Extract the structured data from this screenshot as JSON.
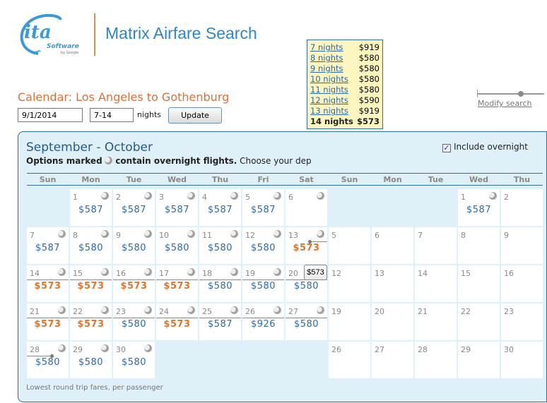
{
  "header": {
    "logo_text": "ita",
    "logo_sub": "Software",
    "logo_by": "by Google",
    "app_title": "Matrix Airfare Search"
  },
  "search": {
    "title": "Calendar: Los Angeles to Gothenburg",
    "date_value": "9/1/2014",
    "nights_value": "7-14",
    "nights_label": "nights",
    "update_label": "Update",
    "modify_label": "Modify search"
  },
  "calendar": {
    "months_title": "September - October",
    "legend_bold_1": "Options marked",
    "legend_bold_2": "contain overnight flights.",
    "legend_rest": "Choose your dep",
    "overnight_label": "Include overnight",
    "overnight_checked": true,
    "weekdays": [
      "Sun",
      "Mon",
      "Tue",
      "Wed",
      "Thu",
      "Fri",
      "Sat",
      "Sun",
      "Mon",
      "Tue",
      "Wed",
      "Thu"
    ],
    "september": [
      [
        null,
        {
          "day": "1",
          "price": "$587",
          "overnight": true
        },
        {
          "day": "2",
          "price": "$587",
          "overnight": true
        },
        {
          "day": "3",
          "price": "$587",
          "overnight": true
        },
        {
          "day": "4",
          "price": "$587",
          "overnight": true
        },
        {
          "day": "5",
          "price": "$587",
          "overnight": true
        },
        {
          "day": "6",
          "price": "",
          "overnight": true
        }
      ],
      [
        {
          "day": "7",
          "price": "$587",
          "overnight": true
        },
        {
          "day": "8",
          "price": "$580",
          "overnight": true
        },
        {
          "day": "9",
          "price": "$580",
          "overnight": true
        },
        {
          "day": "10",
          "price": "$580",
          "overnight": true
        },
        {
          "day": "11",
          "price": "$580",
          "overnight": true
        },
        {
          "day": "12",
          "price": "$580",
          "overnight": true
        },
        {
          "day": "13",
          "price": "$573",
          "best": true,
          "overnight": true,
          "range": "start"
        }
      ],
      [
        {
          "day": "14",
          "price": "$573",
          "best": true,
          "overnight": true,
          "range": "mid"
        },
        {
          "day": "15",
          "price": "$573",
          "best": true,
          "overnight": true,
          "range": "mid"
        },
        {
          "day": "16",
          "price": "$573",
          "best": true,
          "overnight": true,
          "range": "mid"
        },
        {
          "day": "17",
          "price": "$573",
          "best": true,
          "overnight": true,
          "range": "mid"
        },
        {
          "day": "18",
          "price": "$580",
          "overnight": true,
          "range": "mid"
        },
        {
          "day": "19",
          "price": "$580",
          "overnight": true,
          "range": "mid"
        },
        {
          "day": "20",
          "price": "$580",
          "overnight": true,
          "range": "mid"
        }
      ],
      [
        {
          "day": "21",
          "price": "$573",
          "best": true,
          "overnight": true,
          "range": "mid"
        },
        {
          "day": "22",
          "price": "$573",
          "best": true,
          "overnight": true,
          "range": "mid"
        },
        {
          "day": "23",
          "price": "$580",
          "overnight": true,
          "range": "mid"
        },
        {
          "day": "24",
          "price": "$573",
          "best": true,
          "overnight": true,
          "range": "mid"
        },
        {
          "day": "25",
          "price": "$587",
          "overnight": true,
          "range": "mid"
        },
        {
          "day": "26",
          "price": "$926",
          "overnight": true,
          "range": "mid"
        },
        {
          "day": "27",
          "price": "$580",
          "overnight": true,
          "range": "mid"
        }
      ],
      [
        {
          "day": "28",
          "price": "$580",
          "overnight": true,
          "range": "end"
        },
        {
          "day": "29",
          "price": "$580",
          "overnight": true
        },
        {
          "day": "30",
          "price": "$580",
          "overnight": true
        },
        null,
        null,
        null,
        null
      ]
    ],
    "october": [
      [
        null,
        null,
        null,
        {
          "day": "1",
          "price": "$587",
          "overnight": true
        },
        {
          "day": "2",
          "price": ""
        }
      ],
      [
        {
          "day": "5"
        },
        {
          "day": "6"
        },
        {
          "day": "7"
        },
        {
          "day": "8"
        },
        {
          "day": "9"
        }
      ],
      [
        {
          "day": "12"
        },
        {
          "day": "13"
        },
        {
          "day": "14"
        },
        {
          "day": "15"
        },
        {
          "day": "16"
        }
      ],
      [
        {
          "day": "19"
        },
        {
          "day": "20"
        },
        {
          "day": "21"
        },
        {
          "day": "22"
        },
        {
          "day": "23"
        }
      ],
      [
        {
          "day": "26"
        },
        {
          "day": "27"
        },
        {
          "day": "28"
        },
        {
          "day": "29"
        },
        {
          "day": "30"
        }
      ]
    ],
    "footnote": "Lowest round trip fares, per passenger"
  },
  "tooltip": {
    "rows": [
      {
        "label": "7 nights",
        "price": "$919"
      },
      {
        "label": "8 nights",
        "price": "$580"
      },
      {
        "label": "9 nights",
        "price": "$580"
      },
      {
        "label": "10 nights",
        "price": "$580"
      },
      {
        "label": "11 nights",
        "price": "$580"
      },
      {
        "label": "12 nights",
        "price": "$590"
      },
      {
        "label": "13 nights",
        "price": "$919"
      },
      {
        "label": "14 nights",
        "price": "$573",
        "selected": true
      }
    ]
  },
  "hover_price": "$573",
  "colors": {
    "brand_blue": "#2e86c8",
    "title_orange": "#d9703a",
    "best_price": "#e07428",
    "price_blue": "#2a6aa8",
    "panel_bg": "#e0f0f8"
  }
}
